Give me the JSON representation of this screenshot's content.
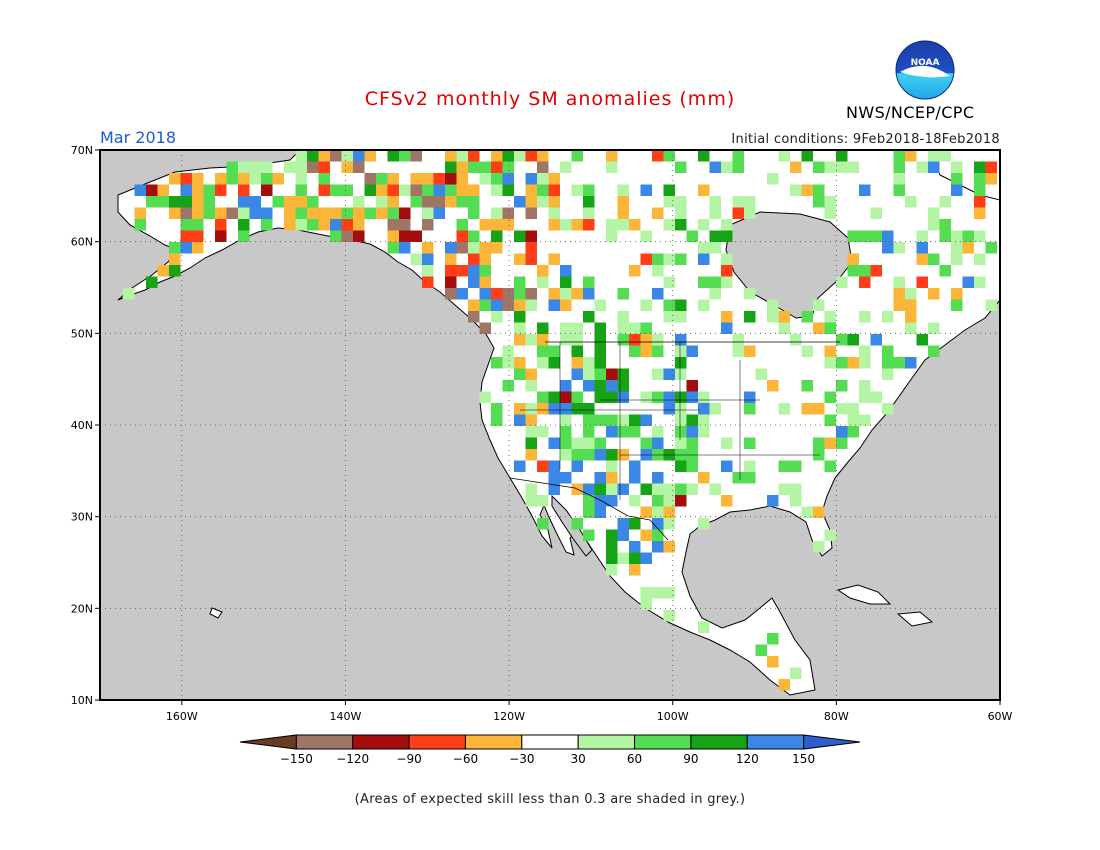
{
  "title": "CFSv2 monthly SM anomalies (mm)",
  "valid_month": "Mar 2018",
  "initial_conditions": "Initial conditions: 9Feb2018-18Feb2018",
  "agency": "NWS/NCEP/CPC",
  "logo_text": "NOAA",
  "footnote": "(Areas of expected skill less than 0.3 are shaded in grey.)",
  "map": {
    "lon_range": [
      -170,
      -60
    ],
    "lat_range": [
      10,
      70
    ],
    "lat_ticks": [
      "70N",
      "60N",
      "50N",
      "40N",
      "30N",
      "20N",
      "10N"
    ],
    "lon_ticks": [
      "160W",
      "140W",
      "120W",
      "100W",
      "80W",
      "60W"
    ],
    "grid_lines": "dotted",
    "masked_color": "#c8c8c8",
    "neutral_color": "#ffffff"
  },
  "colorbar": {
    "labels": [
      "-150",
      "-120",
      "-90",
      "-60",
      "-30",
      "30",
      "60",
      "90",
      "120",
      "150"
    ],
    "colors": [
      "#6b3a22",
      "#9f7666",
      "#a30d0d",
      "#ff3e17",
      "#fbb539",
      "#ffffff",
      "#b4f4a5",
      "#54dc53",
      "#16a316",
      "#3b87e6",
      "#2c5fcc"
    ]
  }
}
